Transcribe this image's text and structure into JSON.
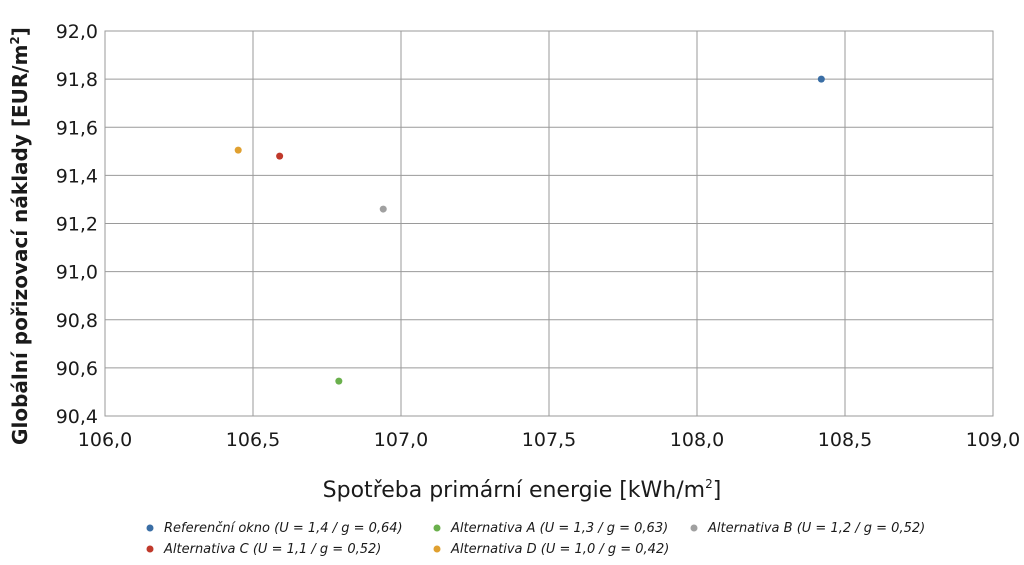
{
  "chart_data": {
    "type": "scatter",
    "xlabel": "Spotřeba primární energie [kWh/m",
    "xlabel_sup": "2",
    "xlabel_close": "]",
    "ylabel": "Globální pořizovací náklady [EUR/m",
    "ylabel_sup": "2",
    "ylabel_close": "]",
    "xlim": [
      106.0,
      109.0
    ],
    "ylim": [
      90.4,
      92.0
    ],
    "x_ticks": [
      106.0,
      106.5,
      107.0,
      107.5,
      108.0,
      108.5,
      109.0
    ],
    "y_ticks": [
      90.4,
      90.6,
      90.8,
      91.0,
      91.2,
      91.4,
      91.6,
      91.8,
      92.0
    ],
    "x_tick_labels": [
      "106,0",
      "106,5",
      "107,0",
      "107,5",
      "108,0",
      "108,5",
      "109,0"
    ],
    "y_tick_labels": [
      "90,4",
      "90,6",
      "90,8",
      "91,0",
      "91,2",
      "91,4",
      "91,6",
      "91,8",
      "92,0"
    ],
    "grid": true,
    "legend_position": "bottom",
    "series": [
      {
        "name": "Referenční okno (U = 1,4 / g = 0,64)",
        "color": "#3a6ea5",
        "x": [
          108.42
        ],
        "y": [
          91.8
        ]
      },
      {
        "name": "Alternativa A (U = 1,3 / g = 0,63)",
        "color": "#6ab04c",
        "x": [
          106.79
        ],
        "y": [
          90.545
        ]
      },
      {
        "name": "Alternativa B (U = 1,2 / g = 0,52)",
        "color": "#a0a0a0",
        "x": [
          106.94
        ],
        "y": [
          91.26
        ]
      },
      {
        "name": "Alternativa C (U = 1,1 / g = 0,52)",
        "color": "#c0392b",
        "x": [
          106.59
        ],
        "y": [
          91.48
        ]
      },
      {
        "name": "Alternativa D (U = 1,0 / g = 0,42)",
        "color": "#e0a030",
        "x": [
          106.45
        ],
        "y": [
          91.505
        ]
      }
    ]
  }
}
